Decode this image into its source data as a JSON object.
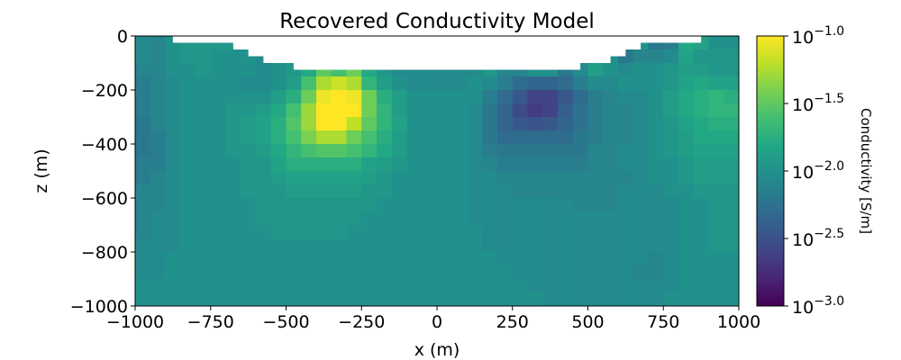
{
  "chart_data": {
    "type": "heatmap",
    "title": "Recovered Conductivity Model",
    "xlabel": "x (m)",
    "ylabel": "z (m)",
    "xlim": [
      -1000,
      1000
    ],
    "ylim": [
      -1000,
      0
    ],
    "xticks": [
      -1000,
      -750,
      -500,
      -250,
      0,
      250,
      500,
      750,
      1000
    ],
    "xtick_labels": [
      "−1000",
      "−750",
      "−500",
      "−250",
      "0",
      "250",
      "500",
      "750",
      "1000"
    ],
    "yticks": [
      0,
      -200,
      -400,
      -600,
      -800,
      -1000
    ],
    "ytick_labels": [
      "0",
      "−200",
      "−400",
      "−600",
      "−800",
      "−1000"
    ],
    "colormap": "viridis",
    "color_scale": "log",
    "colorbar": {
      "label": "Conductivity [S/m]",
      "range_log10": [
        -3.0,
        -1.0
      ],
      "ticks": [
        {
          "value": -1.0,
          "base": "10",
          "exp": "−1.0"
        },
        {
          "value": -1.5,
          "base": "10",
          "exp": "−1.5"
        },
        {
          "value": -2.0,
          "base": "10",
          "exp": "−2.0"
        },
        {
          "value": -2.5,
          "base": "10",
          "exp": "−2.5"
        },
        {
          "value": -3.0,
          "base": "10",
          "exp": "−3.0"
        }
      ]
    },
    "cell_size_m": [
      50,
      50
    ],
    "values_log10_note_units": "log10(S/m)",
    "values_log10": [
      [
        -2.05,
        -2.1,
        -2.0,
        -1.95,
        -1.95,
        -1.95,
        -1.95,
        -1.95,
        -2.0,
        -2.0,
        -2,
        -2,
        -2,
        -2,
        -2,
        -2,
        -2,
        -2,
        -2,
        -2,
        -2,
        -2,
        -2,
        -2,
        -2,
        -2,
        -2,
        -2,
        -2,
        -2,
        -2,
        -2,
        -2,
        -2,
        -2.2,
        -2.15,
        -1.8,
        -1.85,
        -2.0,
        -2.0
      ],
      [
        -2.05,
        -2.1,
        -2.0,
        -1.95,
        -1.95,
        -2.0,
        -2.0,
        -2.0,
        -2.05,
        -2.0,
        -2,
        -2,
        -2,
        -2,
        -2,
        -2,
        -2,
        -2,
        -2,
        -2,
        -2,
        -2,
        -2,
        -2,
        -2,
        -2,
        -2,
        -2,
        -2,
        -2,
        -2,
        -2,
        -2.2,
        -2.1,
        -2.1,
        -2.05,
        -1.85,
        -1.95,
        -1.95,
        -1.95
      ],
      [
        -2.1,
        -2.1,
        -2.0,
        -2.0,
        -1.95,
        -2.0,
        -2.0,
        -2.0,
        -2.05,
        -2.0,
        -1.95,
        -1.8,
        -1.5,
        -1.6,
        -1.45,
        -1.8,
        -1.95,
        -2.05,
        -2.05,
        -2.05,
        -2.05,
        -2.05,
        -2.05,
        -1.95,
        -2.1,
        -2.1,
        -2.0,
        -2.0,
        -2.2,
        -2.05,
        -1.9,
        -2.0,
        -2.05,
        -2.0,
        -2.0,
        -1.95,
        -1.9,
        -1.9,
        -1.95,
        -1.95
      ],
      [
        -2.15,
        -2.1,
        -2.05,
        -2.0,
        -2.0,
        -2.0,
        -2.0,
        -2.05,
        -2.05,
        -2.0,
        -1.9,
        -1.6,
        -1.25,
        -1.15,
        -1.25,
        -1.7,
        -1.9,
        -2.0,
        -2.05,
        -2.05,
        -2.05,
        -2.05,
        -2.0,
        -2.05,
        -2.15,
        -2.3,
        -2.35,
        -2.35,
        -2.3,
        -2.15,
        -2.05,
        -2.05,
        -2.0,
        -2.0,
        -2.0,
        -1.95,
        -1.85,
        -1.8,
        -1.85,
        -1.85
      ],
      [
        -2.15,
        -2.1,
        -2.05,
        -2.0,
        -2.0,
        -2.0,
        -2.0,
        -2.0,
        -2.0,
        -1.9,
        -1.75,
        -1.45,
        -1.05,
        -1.0,
        -1.05,
        -1.45,
        -1.75,
        -1.9,
        -2.0,
        -2.0,
        -2.0,
        -2.0,
        -2.0,
        -2.15,
        -2.3,
        -2.45,
        -2.6,
        -2.6,
        -2.45,
        -2.3,
        -2.15,
        -2.1,
        -2.05,
        -2.05,
        -2.0,
        -1.9,
        -1.8,
        -1.75,
        -1.7,
        -1.75
      ],
      [
        -2.15,
        -2.1,
        -2.05,
        -2.0,
        -2.0,
        -2.0,
        -1.95,
        -1.95,
        -1.9,
        -1.8,
        -1.6,
        -1.3,
        -1.0,
        -1.0,
        -1.0,
        -1.45,
        -1.7,
        -1.9,
        -2.0,
        -2.0,
        -2.0,
        -2.0,
        -2.05,
        -2.2,
        -2.35,
        -2.55,
        -2.65,
        -2.6,
        -2.4,
        -2.25,
        -2.15,
        -2.1,
        -2.1,
        -2.05,
        -2.0,
        -1.9,
        -1.8,
        -1.75,
        -1.7,
        -1.7
      ],
      [
        -2.2,
        -2.1,
        -2.05,
        -2.0,
        -2.0,
        -2.0,
        -1.95,
        -1.9,
        -1.85,
        -1.75,
        -1.55,
        -1.3,
        -1.0,
        -1.0,
        -1.2,
        -1.5,
        -1.7,
        -1.85,
        -2.0,
        -2.0,
        -2.0,
        -2.0,
        -2.05,
        -2.2,
        -2.35,
        -2.45,
        -2.5,
        -2.45,
        -2.35,
        -2.25,
        -2.15,
        -2.1,
        -2.1,
        -2.05,
        -2.0,
        -1.95,
        -1.85,
        -1.8,
        -1.75,
        -1.75
      ],
      [
        -2.2,
        -2.15,
        -2.05,
        -2.0,
        -2.0,
        -2.0,
        -1.95,
        -1.9,
        -1.85,
        -1.75,
        -1.6,
        -1.4,
        -1.25,
        -1.25,
        -1.45,
        -1.6,
        -1.75,
        -1.9,
        -2.0,
        -2.0,
        -2.0,
        -2.0,
        -2.05,
        -2.2,
        -2.3,
        -2.3,
        -2.3,
        -2.3,
        -2.3,
        -2.2,
        -2.15,
        -2.1,
        -2.1,
        -2.05,
        -2.0,
        -1.95,
        -1.9,
        -1.8,
        -1.8,
        -1.8
      ],
      [
        -2.2,
        -2.15,
        -2.05,
        -2.0,
        -2.0,
        -2.0,
        -1.95,
        -1.95,
        -1.9,
        -1.8,
        -1.7,
        -1.6,
        -1.55,
        -1.55,
        -1.6,
        -1.7,
        -1.8,
        -1.9,
        -2.0,
        -2.0,
        -2.0,
        -2.0,
        -2.05,
        -2.15,
        -2.2,
        -2.2,
        -2.2,
        -2.2,
        -2.2,
        -2.2,
        -2.1,
        -2.1,
        -2.05,
        -2.05,
        -2.0,
        -1.95,
        -1.9,
        -1.85,
        -1.85,
        -1.85
      ],
      [
        -2.15,
        -2.15,
        -2.05,
        -2.0,
        -2.0,
        -2.0,
        -2.0,
        -1.95,
        -1.95,
        -1.85,
        -1.75,
        -1.75,
        -1.75,
        -1.75,
        -1.75,
        -1.85,
        -1.9,
        -1.95,
        -2.0,
        -2.0,
        -2.0,
        -2.0,
        -2.05,
        -2.1,
        -2.15,
        -2.15,
        -2.15,
        -2.15,
        -2.15,
        -2.15,
        -2.1,
        -2.1,
        -2.05,
        -2.05,
        -2.0,
        -2.0,
        -1.95,
        -1.9,
        -1.9,
        -1.9
      ],
      [
        -2.15,
        -2.1,
        -2.05,
        -2.0,
        -2.0,
        -2.0,
        -2.0,
        -1.95,
        -1.95,
        -1.9,
        -1.85,
        -1.85,
        -1.85,
        -1.85,
        -1.85,
        -1.9,
        -1.95,
        -2.0,
        -2.0,
        -2.0,
        -2.0,
        -2.0,
        -2.05,
        -2.05,
        -2.1,
        -2.1,
        -2.1,
        -2.1,
        -2.1,
        -2.1,
        -2.1,
        -2.1,
        -2.1,
        -2.05,
        -2.0,
        -2.0,
        -1.95,
        -1.9,
        -1.9,
        -1.9
      ],
      [
        -2.1,
        -2.1,
        -2.05,
        -2.0,
        -2.0,
        -2.0,
        -2.0,
        -1.95,
        -1.95,
        -1.95,
        -1.9,
        -1.9,
        -1.9,
        -1.9,
        -1.9,
        -1.95,
        -1.95,
        -2.0,
        -2.0,
        -2.0,
        -2.0,
        -2.0,
        -2.05,
        -2.05,
        -2.05,
        -2.1,
        -2.1,
        -2.1,
        -2.1,
        -2.1,
        -2.1,
        -2.1,
        -2.05,
        -2.05,
        -2.05,
        -2.0,
        -2.0,
        -1.95,
        -1.95,
        -1.95
      ],
      [
        -2.1,
        -2.1,
        -2.05,
        -2.0,
        -2.0,
        -2.0,
        -2.0,
        -2.0,
        -1.95,
        -1.95,
        -1.95,
        -1.95,
        -1.95,
        -1.95,
        -1.95,
        -1.95,
        -2.0,
        -2.0,
        -2.0,
        -2.0,
        -2.0,
        -2.0,
        -2.05,
        -2.05,
        -2.05,
        -2.05,
        -2.05,
        -2.05,
        -2.05,
        -2.1,
        -2.1,
        -2.1,
        -2.05,
        -2.05,
        -2.05,
        -2.05,
        -2.0,
        -2.0,
        -1.95,
        -1.95
      ],
      [
        -2.1,
        -2.05,
        -2.05,
        -2.0,
        -2.0,
        -2.0,
        -2.0,
        -2.0,
        -1.95,
        -1.95,
        -1.95,
        -1.95,
        -1.95,
        -1.95,
        -1.95,
        -2.0,
        -2.0,
        -2.0,
        -2.0,
        -2.0,
        -2.0,
        -2.0,
        -2.05,
        -2.05,
        -2.05,
        -2.05,
        -2.05,
        -2.05,
        -2.05,
        -2.05,
        -2.05,
        -2.05,
        -2.05,
        -2.05,
        -2.05,
        -2.05,
        -2.0,
        -2.0,
        -1.95,
        -1.95
      ],
      [
        -2.1,
        -2.05,
        -2.05,
        -2.0,
        -2.0,
        -2.0,
        -2.0,
        -2.0,
        -2.0,
        -1.95,
        -1.95,
        -1.95,
        -1.95,
        -1.95,
        -2.0,
        -2.0,
        -2.0,
        -2.0,
        -2.0,
        -2.0,
        -2.0,
        -2.0,
        -2.0,
        -2.05,
        -2.05,
        -2.05,
        -2.05,
        -2.05,
        -2.05,
        -2.05,
        -2.05,
        -2.05,
        -2.05,
        -2.05,
        -2.05,
        -2.05,
        -2.0,
        -2.0,
        -1.95,
        -1.95
      ],
      [
        -2.05,
        -2.05,
        -2.05,
        -2.0,
        -2.0,
        -2.0,
        -2.0,
        -2.0,
        -2.0,
        -2.0,
        -2.0,
        -2.0,
        -2.0,
        -2.0,
        -2.0,
        -2.0,
        -2.0,
        -2.0,
        -2.0,
        -2.0,
        -2.0,
        -2.0,
        -2.0,
        -2.05,
        -2.05,
        -2.05,
        -2.05,
        -2.05,
        -2.05,
        -2.05,
        -2.05,
        -2.05,
        -2.05,
        -2.05,
        -2.05,
        -2.05,
        -2.0,
        -2.0,
        -1.95,
        -1.95
      ],
      [
        -2.05,
        -2.05,
        -2.0,
        -2.0,
        -2.0,
        -2.0,
        -2.0,
        -2.0,
        -2.0,
        -2.0,
        -2.0,
        -2.0,
        -2.0,
        -2.0,
        -2.0,
        -2.0,
        -2.0,
        -2.0,
        -2.0,
        -2.0,
        -2.0,
        -2.0,
        -2.0,
        -2.0,
        -2.05,
        -2.05,
        -2.05,
        -2.05,
        -2.05,
        -2.05,
        -2.05,
        -2.05,
        -2.05,
        -2.05,
        -2.1,
        -2.05,
        -2.0,
        -2.0,
        -2.0,
        -2.0
      ],
      [
        -2.05,
        -2.05,
        -2.0,
        -2.0,
        -2.0,
        -2.0,
        -2.0,
        -2.0,
        -2.0,
        -2.0,
        -2.0,
        -2.0,
        -2.0,
        -2.0,
        -2.0,
        -2.0,
        -2.0,
        -2.0,
        -2.0,
        -2.0,
        -2.0,
        -2.0,
        -2.0,
        -2.0,
        -2.0,
        -2.05,
        -2.05,
        -2.05,
        -2.05,
        -2.05,
        -2.05,
        -2.05,
        -2.05,
        -2.1,
        -2.1,
        -2.05,
        -2.0,
        -2.0,
        -2.0,
        -2.0
      ],
      [
        -2.0,
        -2.0,
        -2.0,
        -2.0,
        -2.0,
        -2.0,
        -2.0,
        -2.0,
        -2.0,
        -2.0,
        -2.0,
        -2.0,
        -2.0,
        -2.0,
        -2.0,
        -2.0,
        -2.0,
        -2.0,
        -2.0,
        -2.0,
        -2.0,
        -2.0,
        -2.0,
        -2.0,
        -2.0,
        -2.0,
        -2.05,
        -2.05,
        -2.05,
        -2.05,
        -2.05,
        -2.05,
        -2.05,
        -2.05,
        -2.05,
        -2.05,
        -2.0,
        -2.0,
        -2.0,
        -2.0
      ],
      [
        -2.0,
        -2.0,
        -2.0,
        -2.0,
        -2.0,
        -2.0,
        -2.0,
        -2.0,
        -2.0,
        -2.0,
        -2.0,
        -2.0,
        -2.0,
        -2.0,
        -2.0,
        -2.0,
        -2.0,
        -2.0,
        -2.0,
        -2.0,
        -2.0,
        -2.0,
        -2.0,
        -2.0,
        -2.0,
        -2.0,
        -2.0,
        -2.05,
        -2.05,
        -2.05,
        -2.05,
        -2.05,
        -2.05,
        -2.05,
        -2.05,
        -2.0,
        -2.0,
        -2.0,
        -2.0,
        -2.0
      ]
    ],
    "topography": [
      [
        -1000,
        0
      ],
      [
        -875,
        0
      ],
      [
        -875,
        -25
      ],
      [
        -675,
        -25
      ],
      [
        -675,
        -50
      ],
      [
        -625,
        -50
      ],
      [
        -625,
        -75
      ],
      [
        -575,
        -75
      ],
      [
        -575,
        -100
      ],
      [
        -475,
        -100
      ],
      [
        -475,
        -125
      ],
      [
        475,
        -125
      ],
      [
        475,
        -100
      ],
      [
        575,
        -100
      ],
      [
        575,
        -75
      ],
      [
        625,
        -75
      ],
      [
        625,
        -50
      ],
      [
        675,
        -50
      ],
      [
        675,
        -25
      ],
      [
        875,
        -25
      ],
      [
        875,
        0
      ],
      [
        1000,
        0
      ]
    ]
  }
}
